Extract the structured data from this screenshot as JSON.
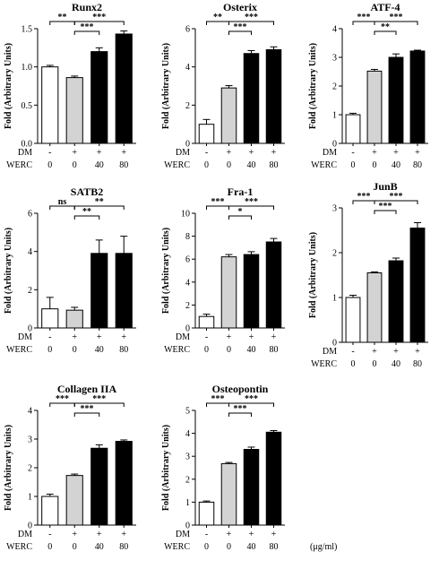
{
  "conditions": {
    "dm_label": "DM",
    "dm_values": [
      "-",
      "+",
      "+",
      "+"
    ],
    "werc_label": "WERC",
    "werc_values": [
      "0",
      "0",
      "40",
      "80"
    ],
    "unit": "(μg/ml)"
  },
  "colors": {
    "bar_fills": [
      "#ffffff",
      "#d3d3d3",
      "#000000",
      "#000000"
    ],
    "stroke": "#000000"
  },
  "chart_data": [
    {
      "type": "bar",
      "title": "Runx2",
      "ylabel": "Fold (Arbitrary Units)",
      "ylim": [
        0,
        1.5
      ],
      "yticks": [
        "0.0",
        "0.5",
        "1.0",
        "1.5"
      ],
      "ytick_values": [
        0,
        0.5,
        1.0,
        1.5
      ],
      "categories": [
        "-/0",
        "+/0",
        "+/40",
        "+/80"
      ],
      "values": [
        1.0,
        0.86,
        1.2,
        1.43
      ],
      "errors": [
        0.02,
        0.02,
        0.05,
        0.04
      ],
      "significance": [
        {
          "from": 0,
          "to": 1,
          "label": "**"
        },
        {
          "from": 1,
          "to": 3,
          "label": "***"
        },
        {
          "from": 1,
          "to": 2,
          "label": "***"
        }
      ]
    },
    {
      "type": "bar",
      "title": "Osterix",
      "ylabel": "Fold (Arbitrary Units)",
      "ylim": [
        0,
        6
      ],
      "yticks": [
        "0",
        "2",
        "4",
        "6"
      ],
      "ytick_values": [
        0,
        2,
        4,
        6
      ],
      "categories": [
        "-/0",
        "+/0",
        "+/40",
        "+/80"
      ],
      "values": [
        1.0,
        2.9,
        4.7,
        4.9
      ],
      "errors": [
        0.25,
        0.12,
        0.15,
        0.15
      ],
      "significance": [
        {
          "from": 0,
          "to": 1,
          "label": "**"
        },
        {
          "from": 1,
          "to": 3,
          "label": "***"
        },
        {
          "from": 1,
          "to": 2,
          "label": "***"
        }
      ]
    },
    {
      "type": "bar",
      "title": "ATF-4",
      "ylabel": "Fold (Arbitrary Units)",
      "ylim": [
        0,
        4
      ],
      "yticks": [
        "0",
        "1",
        "2",
        "3",
        "4"
      ],
      "ytick_values": [
        0,
        1,
        2,
        3,
        4
      ],
      "categories": [
        "-/0",
        "+/0",
        "+/40",
        "+/80"
      ],
      "values": [
        1.0,
        2.52,
        3.0,
        3.22
      ],
      "errors": [
        0.05,
        0.06,
        0.12,
        0.03
      ],
      "significance": [
        {
          "from": 0,
          "to": 1,
          "label": "***"
        },
        {
          "from": 1,
          "to": 3,
          "label": "***"
        },
        {
          "from": 1,
          "to": 2,
          "label": "**"
        }
      ]
    },
    {
      "type": "bar",
      "title": "SATB2",
      "ylabel": "Fold (Arbitrary Units)",
      "ylim": [
        0,
        6
      ],
      "yticks": [
        "0",
        "2",
        "4",
        "6"
      ],
      "ytick_values": [
        0,
        2,
        4,
        6
      ],
      "categories": [
        "-/0",
        "+/0",
        "+/40",
        "+/80"
      ],
      "values": [
        1.0,
        0.93,
        3.9,
        3.9
      ],
      "errors": [
        0.6,
        0.15,
        0.7,
        0.9
      ],
      "significance": [
        {
          "from": 0,
          "to": 1,
          "label": "ns"
        },
        {
          "from": 1,
          "to": 3,
          "label": "**"
        },
        {
          "from": 1,
          "to": 2,
          "label": "**"
        }
      ]
    },
    {
      "type": "bar",
      "title": "Fra-1",
      "ylabel": "Fold (Arbitrary Units)",
      "ylim": [
        0,
        10
      ],
      "yticks": [
        "0",
        "2",
        "4",
        "6",
        "8",
        "10"
      ],
      "ytick_values": [
        0,
        2,
        4,
        6,
        8,
        10
      ],
      "categories": [
        "-/0",
        "+/0",
        "+/40",
        "+/80"
      ],
      "values": [
        1.0,
        6.2,
        6.4,
        7.5
      ],
      "errors": [
        0.2,
        0.2,
        0.25,
        0.3
      ],
      "significance": [
        {
          "from": 0,
          "to": 1,
          "label": "***"
        },
        {
          "from": 1,
          "to": 3,
          "label": "***"
        },
        {
          "from": 1,
          "to": 2,
          "label": "*"
        }
      ]
    },
    {
      "type": "bar",
      "title": "JunB",
      "ylabel": "Fold (Arbitrary Units)",
      "ylim": [
        0,
        3
      ],
      "yticks": [
        "0",
        "1",
        "2",
        "3"
      ],
      "ytick_values": [
        0,
        1,
        2,
        3
      ],
      "categories": [
        "-/0",
        "+/0",
        "+/40",
        "+/80"
      ],
      "values": [
        1.0,
        1.55,
        1.82,
        2.55
      ],
      "errors": [
        0.05,
        0.02,
        0.06,
        0.12
      ],
      "significance": [
        {
          "from": 0,
          "to": 1,
          "label": "***"
        },
        {
          "from": 1,
          "to": 3,
          "label": "***"
        },
        {
          "from": 1,
          "to": 2,
          "label": "***"
        }
      ]
    },
    {
      "type": "bar",
      "title": "Collagen IIA",
      "ylabel": "Fold (Arbitrary Units)",
      "ylim": [
        0,
        4
      ],
      "yticks": [
        "0",
        "1",
        "2",
        "3",
        "4"
      ],
      "ytick_values": [
        0,
        1,
        2,
        3,
        4
      ],
      "categories": [
        "-/0",
        "+/0",
        "+/40",
        "+/80"
      ],
      "values": [
        1.0,
        1.73,
        2.68,
        2.92
      ],
      "errors": [
        0.08,
        0.05,
        0.12,
        0.05
      ],
      "significance": [
        {
          "from": 0,
          "to": 1,
          "label": "***"
        },
        {
          "from": 1,
          "to": 3,
          "label": "***"
        },
        {
          "from": 1,
          "to": 2,
          "label": "***"
        }
      ]
    },
    {
      "type": "bar",
      "title": "Osteopontin",
      "ylabel": "Fold (Arbitrary Units)",
      "ylim": [
        0,
        5
      ],
      "yticks": [
        "0",
        "1",
        "2",
        "3",
        "4",
        "5"
      ],
      "ytick_values": [
        0,
        1,
        2,
        3,
        4,
        5
      ],
      "categories": [
        "-/0",
        "+/0",
        "+/40",
        "+/80"
      ],
      "values": [
        1.0,
        2.68,
        3.3,
        4.05
      ],
      "errors": [
        0.05,
        0.05,
        0.1,
        0.07
      ],
      "significance": [
        {
          "from": 0,
          "to": 1,
          "label": "***"
        },
        {
          "from": 1,
          "to": 3,
          "label": "***"
        },
        {
          "from": 1,
          "to": 2,
          "label": "***"
        }
      ]
    }
  ]
}
